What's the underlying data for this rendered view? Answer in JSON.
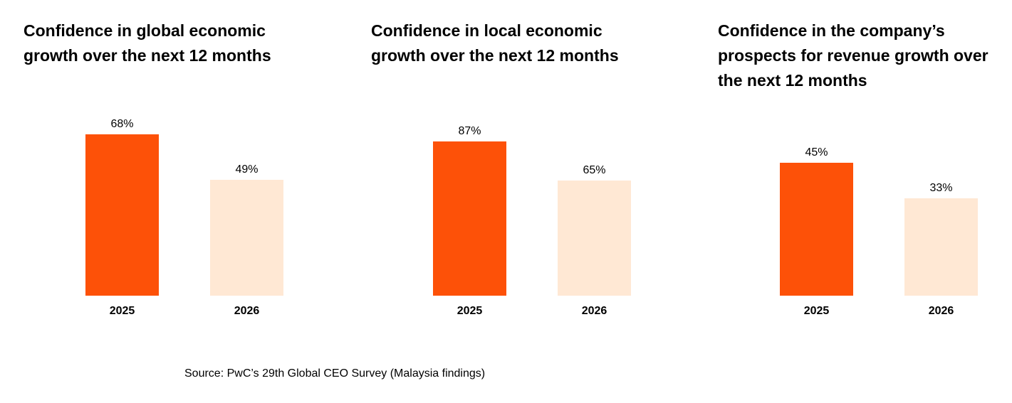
{
  "colors": {
    "2025": "#FD5108",
    "2026": "#FFE8D4"
  },
  "chart_data": [
    {
      "type": "bar",
      "title": "Confidence in global economic growth over the next 12 months",
      "categories": [
        "2025",
        "2026"
      ],
      "values": [
        68,
        49
      ],
      "labels": [
        "68%",
        "49%"
      ],
      "ylim": [
        0,
        75
      ]
    },
    {
      "type": "bar",
      "title": "Confidence in local economic growth over the next 12 months",
      "categories": [
        "2025",
        "2026"
      ],
      "values": [
        87,
        65
      ],
      "labels": [
        "87%",
        "65%"
      ],
      "ylim": [
        0,
        100
      ]
    },
    {
      "type": "bar",
      "title": "Confidence in the company’s prospects for revenue growth over the next 12 months",
      "categories": [
        "2025",
        "2026"
      ],
      "values": [
        45,
        33
      ],
      "labels": [
        "45%",
        "33%"
      ],
      "ylim": [
        0,
        60
      ]
    }
  ],
  "source": "Source: PwC’s 29th Global CEO Survey (Malaysia findings)"
}
